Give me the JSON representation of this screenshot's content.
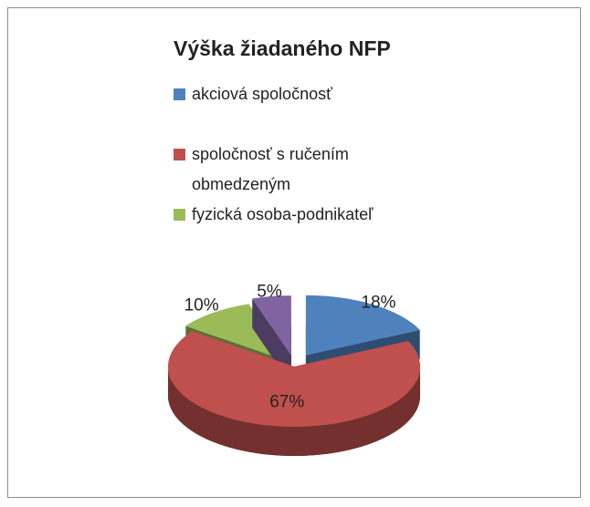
{
  "chart_data": {
    "type": "pie",
    "title": "Výška žiadaného NFP",
    "categories": [
      "akciová spoločnosť",
      "spoločnosť s ručením obmedzeným",
      "fyzická osoba-podnikateľ",
      null
    ],
    "values": [
      18,
      67,
      10,
      5
    ],
    "value_labels": [
      "18%",
      "67%",
      "10%",
      "5%"
    ],
    "colors": [
      "#4f81bd",
      "#c0504d",
      "#9bbb59",
      "#8064a2"
    ],
    "legend": "top",
    "three_d": true,
    "exploded": true
  }
}
